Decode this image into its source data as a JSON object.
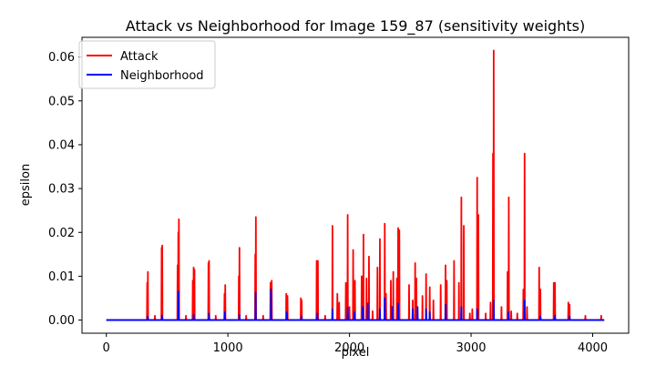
{
  "chart_data": {
    "type": "line",
    "title": "Attack vs Neighborhood for Image 159_87 (sensitivity weights)",
    "xlabel": "pixel",
    "ylabel": "epsilon",
    "xlim": [
      -200,
      4296
    ],
    "ylim": [
      -0.003,
      0.0645
    ],
    "xticks": [
      0,
      1000,
      2000,
      3000,
      4000
    ],
    "yticks": [
      0.0,
      0.01,
      0.02,
      0.03,
      0.04,
      0.05,
      0.06
    ],
    "ytick_labels": [
      "0.00",
      "0.01",
      "0.02",
      "0.03",
      "0.04",
      "0.05",
      "0.06"
    ],
    "x_range": [
      0,
      4095
    ],
    "grid": false,
    "legend_position": "upper-left",
    "series": [
      {
        "name": "Attack",
        "color": "#ff0000",
        "peaks": [
          [
            336,
            0.0085
          ],
          [
            342,
            0.011
          ],
          [
            400,
            0.001
          ],
          [
            455,
            0.0165
          ],
          [
            460,
            0.017
          ],
          [
            586,
            0.0125
          ],
          [
            592,
            0.02
          ],
          [
            597,
            0.023
          ],
          [
            655,
            0.001
          ],
          [
            711,
            0.009
          ],
          [
            718,
            0.012
          ],
          [
            725,
            0.0115
          ],
          [
            840,
            0.013
          ],
          [
            845,
            0.0135
          ],
          [
            900,
            0.001
          ],
          [
            972,
            0.006
          ],
          [
            978,
            0.008
          ],
          [
            1090,
            0.01
          ],
          [
            1095,
            0.0165
          ],
          [
            1150,
            0.001
          ],
          [
            1225,
            0.015
          ],
          [
            1230,
            0.0235
          ],
          [
            1290,
            0.001
          ],
          [
            1350,
            0.0085
          ],
          [
            1360,
            0.009
          ],
          [
            1480,
            0.006
          ],
          [
            1490,
            0.0055
          ],
          [
            1600,
            0.005
          ],
          [
            1607,
            0.0045
          ],
          [
            1730,
            0.0135
          ],
          [
            1740,
            0.0135
          ],
          [
            1800,
            0.001
          ],
          [
            1860,
            0.0215
          ],
          [
            1900,
            0.006
          ],
          [
            1915,
            0.004
          ],
          [
            1970,
            0.0085
          ],
          [
            1985,
            0.024
          ],
          [
            2000,
            0.003
          ],
          [
            2030,
            0.016
          ],
          [
            2045,
            0.009
          ],
          [
            2100,
            0.01
          ],
          [
            2115,
            0.0195
          ],
          [
            2140,
            0.0095
          ],
          [
            2160,
            0.0145
          ],
          [
            2190,
            0.002
          ],
          [
            2230,
            0.012
          ],
          [
            2250,
            0.0185
          ],
          [
            2290,
            0.022
          ],
          [
            2300,
            0.006
          ],
          [
            2340,
            0.009
          ],
          [
            2360,
            0.011
          ],
          [
            2390,
            0.0095
          ],
          [
            2400,
            0.021
          ],
          [
            2410,
            0.0205
          ],
          [
            2490,
            0.008
          ],
          [
            2520,
            0.0045
          ],
          [
            2540,
            0.013
          ],
          [
            2550,
            0.0095
          ],
          [
            2600,
            0.0055
          ],
          [
            2630,
            0.0105
          ],
          [
            2660,
            0.0075
          ],
          [
            2690,
            0.0045
          ],
          [
            2750,
            0.008
          ],
          [
            2790,
            0.0125
          ],
          [
            2800,
            0.009
          ],
          [
            2860,
            0.0135
          ],
          [
            2900,
            0.0085
          ],
          [
            2920,
            0.028
          ],
          [
            2940,
            0.0215
          ],
          [
            2990,
            0.0015
          ],
          [
            3010,
            0.0025
          ],
          [
            3050,
            0.0325
          ],
          [
            3060,
            0.024
          ],
          [
            3120,
            0.0015
          ],
          [
            3160,
            0.004
          ],
          [
            3180,
            0.038
          ],
          [
            3186,
            0.0615
          ],
          [
            3250,
            0.003
          ],
          [
            3300,
            0.011
          ],
          [
            3310,
            0.028
          ],
          [
            3330,
            0.002
          ],
          [
            3380,
            0.0015
          ],
          [
            3430,
            0.007
          ],
          [
            3440,
            0.038
          ],
          [
            3460,
            0.003
          ],
          [
            3560,
            0.012
          ],
          [
            3570,
            0.007
          ],
          [
            3680,
            0.0085
          ],
          [
            3690,
            0.0085
          ],
          [
            3800,
            0.004
          ],
          [
            3810,
            0.0035
          ],
          [
            3940,
            0.001
          ],
          [
            4070,
            0.001
          ]
        ]
      },
      {
        "name": "Neighborhood",
        "color": "#0000ff",
        "peaks": [
          [
            340,
            0.0008
          ],
          [
            458,
            0.001
          ],
          [
            594,
            0.0065
          ],
          [
            718,
            0.0012
          ],
          [
            845,
            0.0015
          ],
          [
            975,
            0.0018
          ],
          [
            1095,
            0.0012
          ],
          [
            1228,
            0.0063
          ],
          [
            1355,
            0.007
          ],
          [
            1485,
            0.0018
          ],
          [
            1605,
            0.0008
          ],
          [
            1735,
            0.0015
          ],
          [
            1860,
            0.0025
          ],
          [
            1985,
            0.0028
          ],
          [
            2040,
            0.0018
          ],
          [
            2110,
            0.003
          ],
          [
            2150,
            0.0038
          ],
          [
            2250,
            0.0025
          ],
          [
            2290,
            0.005
          ],
          [
            2350,
            0.003
          ],
          [
            2400,
            0.0038
          ],
          [
            2520,
            0.0025
          ],
          [
            2560,
            0.003
          ],
          [
            2630,
            0.0025
          ],
          [
            2660,
            0.0018
          ],
          [
            2790,
            0.0035
          ],
          [
            2920,
            0.003
          ],
          [
            3050,
            0.0025
          ],
          [
            3186,
            0.0045
          ],
          [
            3310,
            0.0018
          ],
          [
            3440,
            0.0045
          ],
          [
            3570,
            0.0008
          ],
          [
            3690,
            0.001
          ],
          [
            3810,
            0.0008
          ]
        ]
      }
    ]
  }
}
